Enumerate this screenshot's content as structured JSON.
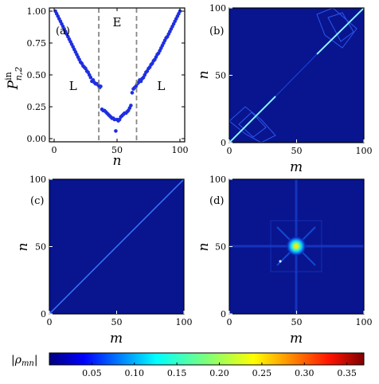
{
  "colors": {
    "point": "#1f2fe0",
    "background_map": "#08158f",
    "dashed_line": "#888888"
  },
  "chart_data": [
    {
      "panel": "a",
      "type": "scatter",
      "panel_label": "(a)",
      "xlabel": "n",
      "ylabel_base": "P",
      "ylabel_sup": "in",
      "ylabel_sub": "n,2",
      "xlim": [
        0,
        100
      ],
      "ylim": [
        0,
        1
      ],
      "xticks": [
        "0",
        "50",
        "100"
      ],
      "yticks": [
        "0.00",
        "0.25",
        "0.50",
        "0.75",
        "1.00"
      ],
      "regions": [
        {
          "text": "L",
          "x": 15,
          "y": 0.38
        },
        {
          "text": "E",
          "x": 50,
          "y": 0.88
        },
        {
          "text": "L",
          "x": 85,
          "y": 0.38
        }
      ],
      "dashed_lines_x": [
        35.5,
        65.5
      ],
      "x": [
        1,
        2,
        3,
        4,
        5,
        6,
        7,
        8,
        9,
        10,
        11,
        12,
        13,
        14,
        15,
        16,
        17,
        18,
        19,
        20,
        21,
        22,
        23,
        24,
        25,
        26,
        27,
        28,
        29,
        30,
        31,
        32,
        33,
        34,
        35,
        36,
        37,
        38,
        39,
        40,
        41,
        42,
        43,
        44,
        45,
        46,
        47,
        48,
        49,
        50,
        51,
        52,
        53,
        54,
        55,
        56,
        57,
        58,
        59,
        60,
        61,
        62,
        63,
        64,
        65,
        66,
        67,
        68,
        69,
        70,
        71,
        72,
        73,
        74,
        75,
        76,
        77,
        78,
        79,
        80,
        81,
        82,
        83,
        84,
        85,
        86,
        87,
        88,
        89,
        90,
        91,
        92,
        93,
        94,
        95,
        96,
        97,
        98,
        99,
        100
      ],
      "y": [
        1.0,
        0.98,
        0.96,
        0.94,
        0.92,
        0.9,
        0.88,
        0.86,
        0.84,
        0.82,
        0.8,
        0.78,
        0.76,
        0.74,
        0.72,
        0.7,
        0.68,
        0.66,
        0.64,
        0.62,
        0.6,
        0.59,
        0.57,
        0.56,
        0.55,
        0.53,
        0.52,
        0.5,
        0.48,
        0.45,
        0.46,
        0.44,
        0.43,
        0.43,
        0.42,
        0.4,
        0.41,
        0.23,
        0.22,
        0.22,
        0.21,
        0.2,
        0.19,
        0.18,
        0.17,
        0.16,
        0.16,
        0.15,
        0.06,
        0.15,
        0.14,
        0.15,
        0.17,
        0.18,
        0.19,
        0.2,
        0.2,
        0.21,
        0.22,
        0.24,
        0.26,
        0.36,
        0.39,
        0.4,
        0.41,
        0.43,
        0.44,
        0.46,
        0.45,
        0.47,
        0.48,
        0.5,
        0.52,
        0.53,
        0.55,
        0.56,
        0.58,
        0.59,
        0.61,
        0.62,
        0.64,
        0.66,
        0.67,
        0.69,
        0.71,
        0.73,
        0.75,
        0.77,
        0.79,
        0.8,
        0.82,
        0.84,
        0.86,
        0.88,
        0.9,
        0.92,
        0.94,
        0.96,
        0.98,
        1.0
      ]
    },
    {
      "panel": "b",
      "type": "heatmap",
      "panel_label": "(b)",
      "xlabel": "m",
      "ylabel": "n",
      "xlim": [
        0,
        100
      ],
      "ylim": [
        0,
        100
      ],
      "xticks": [
        "0",
        "50",
        "100"
      ],
      "yticks": [
        "0",
        "50",
        "100"
      ],
      "features": "bright diagonal entries for n,m < 35 and n,m > 65; diamond-shaped off-diagonal structure in those corners"
    },
    {
      "panel": "c",
      "type": "heatmap",
      "panel_label": "(c)",
      "xlabel": "m",
      "ylabel": "n",
      "xlim": [
        0,
        100
      ],
      "ylim": [
        0,
        100
      ],
      "xticks": [
        "0",
        "50",
        "100"
      ],
      "yticks": [
        "0",
        "50",
        "100"
      ],
      "features": "thin uniform diagonal m = n"
    },
    {
      "panel": "d",
      "type": "heatmap",
      "panel_label": "(d)",
      "xlabel": "m",
      "ylabel": "n",
      "xlim": [
        0,
        100
      ],
      "ylim": [
        0,
        100
      ],
      "xticks": [
        "0",
        "50",
        "100"
      ],
      "yticks": [
        "0",
        "50",
        "100"
      ],
      "features": "bright localized peak at m = n = 50 with faint cross-shaped halo"
    },
    {
      "type": "colorbar",
      "label_base": "|ρ",
      "label_sub": "mn",
      "label_end": "|",
      "range": [
        0,
        0.37
      ],
      "ticks": [
        0.05,
        0.1,
        0.15,
        0.2,
        0.25,
        0.3,
        0.35
      ],
      "tick_labels": [
        "0.05",
        "0.10",
        "0.15",
        "0.20",
        "0.25",
        "0.30",
        "0.35"
      ]
    }
  ]
}
